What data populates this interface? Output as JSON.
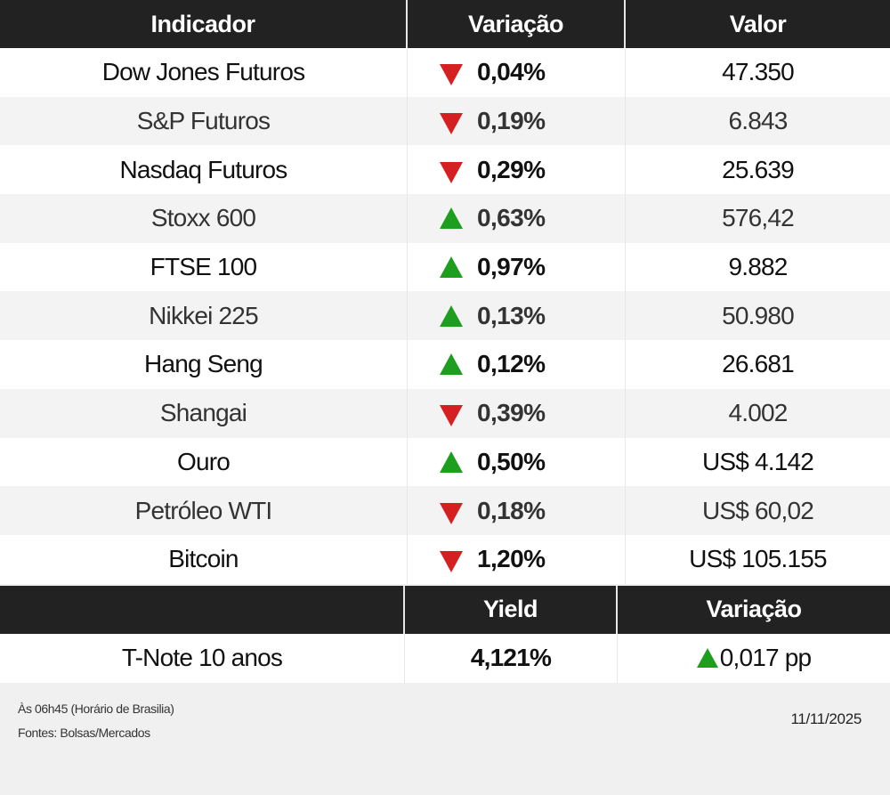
{
  "table": {
    "headers": [
      "Indicador",
      "Variação",
      "Valor"
    ],
    "rows": [
      {
        "indicator": "Dow Jones Futuros",
        "direction": "down",
        "variation": "0,04%",
        "value": "47.350"
      },
      {
        "indicator": "S&P Futuros",
        "direction": "down",
        "variation": "0,19%",
        "value": "6.843"
      },
      {
        "indicator": "Nasdaq Futuros",
        "direction": "down",
        "variation": "0,29%",
        "value": "25.639"
      },
      {
        "indicator": "Stoxx 600",
        "direction": "up",
        "variation": "0,63%",
        "value": "576,42"
      },
      {
        "indicator": "FTSE 100",
        "direction": "up",
        "variation": "0,97%",
        "value": "9.882"
      },
      {
        "indicator": "Nikkei 225",
        "direction": "up",
        "variation": "0,13%",
        "value": "50.980"
      },
      {
        "indicator": "Hang Seng",
        "direction": "up",
        "variation": "0,12%",
        "value": "26.681"
      },
      {
        "indicator": "Shangai",
        "direction": "down",
        "variation": "0,39%",
        "value": "4.002"
      },
      {
        "indicator": "Ouro",
        "direction": "up",
        "variation": "0,50%",
        "value": "US$ 4.142"
      },
      {
        "indicator": "Petróleo WTI",
        "direction": "down",
        "variation": "0,18%",
        "value": "US$ 60,02"
      },
      {
        "indicator": "Bitcoin",
        "direction": "down",
        "variation": "1,20%",
        "value": "US$ 105.155"
      }
    ]
  },
  "bonds": {
    "headers": [
      "",
      "Yield",
      "Variação"
    ],
    "rows": [
      {
        "indicator": "T-Note 10 anos",
        "yield": "4,121%",
        "direction": "up",
        "variation": "0,017 pp"
      }
    ]
  },
  "footer": {
    "time_note": "Às 06h45 (Horário de Brasilia)",
    "source_note": "Fontes: Bolsas/Mercados",
    "date": "11/11/2025"
  },
  "colors": {
    "header_bg": "#222222",
    "up": "#1e9e1e",
    "down": "#d42020",
    "stripe": "#f3f3f3",
    "footer_bg": "#f0f0f0"
  },
  "icons": {
    "up": "triangle-up-icon",
    "down": "triangle-down-icon"
  }
}
